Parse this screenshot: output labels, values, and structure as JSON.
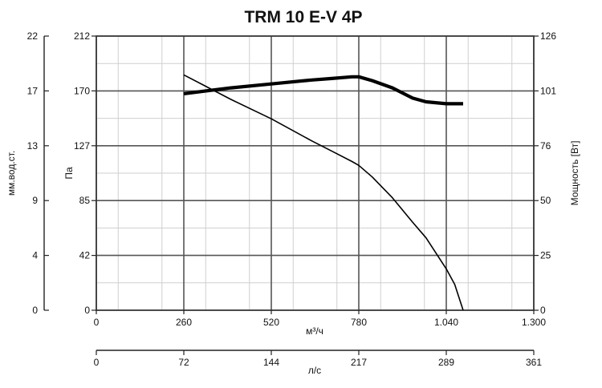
{
  "chart_data": {
    "type": "line",
    "title": "TRM 10 E-V 4P",
    "x_axis_primary": {
      "label": "м³/ч",
      "range": [
        0,
        1300
      ],
      "ticks": [
        0,
        260,
        520,
        780,
        1040,
        1300
      ],
      "tick_labels": [
        "0",
        "260",
        "520",
        "780",
        "1.040",
        "1.300"
      ]
    },
    "x_axis_secondary": {
      "label": "л/с",
      "range": [
        0,
        361
      ],
      "ticks": [
        0,
        72,
        144,
        217,
        289,
        361
      ],
      "tick_labels": [
        "0",
        "72",
        "144",
        "217",
        "289",
        "361"
      ]
    },
    "y_axis_pressure": {
      "label": "Па",
      "range": [
        0,
        212
      ],
      "ticks": [
        0,
        42,
        85,
        127,
        170,
        212
      ],
      "tick_labels": [
        "0",
        "42",
        "85",
        "127",
        "170",
        "212"
      ]
    },
    "y_axis_water": {
      "label": "мм.вод.ст.",
      "tick_labels": [
        "0",
        "4",
        "9",
        "13",
        "17",
        "22"
      ]
    },
    "y_axis_power": {
      "label": "Мощность [Вт]",
      "range": [
        0,
        126
      ],
      "ticks": [
        0,
        25,
        50,
        76,
        101,
        126
      ],
      "tick_labels": [
        "0",
        "25",
        "50",
        "76",
        "101",
        "126"
      ]
    },
    "grid": true,
    "series": [
      {
        "axis": "pressure",
        "style": "thin",
        "x": [
          260,
          400,
          520,
          640,
          700,
          760,
          780,
          820,
          880,
          940,
          980,
          1040,
          1065,
          1090
        ],
        "y": [
          182,
          163,
          148,
          131,
          123,
          115,
          112,
          103,
          87,
          68,
          56,
          32,
          20,
          0
        ]
      },
      {
        "axis": "power",
        "style": "thick",
        "x": [
          260,
          400,
          520,
          640,
          700,
          760,
          780,
          820,
          880,
          940,
          980,
          1040,
          1090
        ],
        "y": [
          99.5,
          102.2,
          104.0,
          105.8,
          106.5,
          107.3,
          107.3,
          105.5,
          102.2,
          97.5,
          95.8,
          94.9,
          94.9
        ]
      }
    ]
  }
}
